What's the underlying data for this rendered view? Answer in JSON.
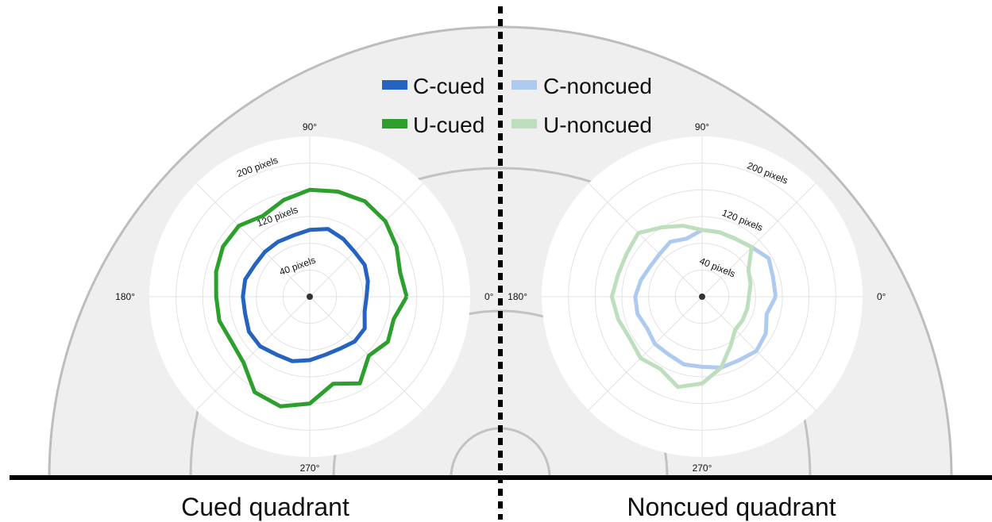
{
  "chart_data": {
    "type": "polar-line",
    "captions": {
      "left": "Cued quadrant",
      "right": "Noncued quadrant"
    },
    "legend": [
      {
        "name": "C-cued",
        "color": "#2563c0"
      },
      {
        "name": "U-cued",
        "color": "#2ca02c"
      },
      {
        "name": "C-noncued",
        "color": "#aecbef"
      },
      {
        "name": "U-noncued",
        "color": "#bedfbe"
      }
    ],
    "angle_ticks": [
      "0°",
      "90°",
      "180°",
      "270°"
    ],
    "radial_ticks": [
      {
        "value": 40,
        "label": "40 pixels"
      },
      {
        "value": 120,
        "label": "120 pixels"
      },
      {
        "value": 200,
        "label": "200 pixels"
      }
    ],
    "rmax": 240,
    "panels": [
      {
        "name": "Cued quadrant",
        "series": [
          {
            "name": "U-cued",
            "color": "#2ca02c",
            "angles_deg": [
              0,
              15,
              30,
              45,
              60,
              75,
              90,
              105,
              120,
              135,
              150,
              165,
              180,
              195,
              210,
              225,
              240,
              255,
              270,
              285,
              300,
              315,
              330,
              345
            ],
            "r_pixels": [
              145,
              140,
              150,
              160,
              165,
              163,
              160,
              150,
              140,
              150,
              150,
              145,
              140,
              140,
              135,
              140,
              165,
              170,
              160,
              135,
              150,
              125,
              135,
              130
            ]
          },
          {
            "name": "C-cued",
            "color": "#2563c0",
            "angles_deg": [
              0,
              15,
              30,
              45,
              60,
              75,
              90,
              105,
              120,
              135,
              150,
              165,
              180,
              195,
              210,
              225,
              240,
              255,
              270,
              285,
              300,
              315,
              330,
              345
            ],
            "r_pixels": [
              85,
              90,
              95,
              95,
              100,
              105,
              100,
              95,
              95,
              95,
              95,
              100,
              100,
              100,
              105,
              105,
              100,
              100,
              95,
              90,
              90,
              95,
              95,
              85
            ]
          }
        ]
      },
      {
        "name": "Noncued quadrant",
        "series": [
          {
            "name": "C-noncued",
            "color": "#aecbef",
            "angles_deg": [
              0,
              15,
              30,
              45,
              60,
              75,
              90,
              105,
              120,
              135,
              150,
              165,
              180,
              195,
              210,
              225,
              240,
              255,
              270,
              285,
              300,
              315,
              330,
              345
            ],
            "r_pixels": [
              110,
              110,
              115,
              105,
              100,
              100,
              100,
              90,
              95,
              90,
              90,
              95,
              100,
              100,
              95,
              100,
              100,
              105,
              105,
              110,
              110,
              115,
              110,
              100
            ]
          },
          {
            "name": "U-noncued",
            "color": "#bedfbe",
            "angles_deg": [
              0,
              15,
              30,
              45,
              60,
              75,
              90,
              105,
              120,
              135,
              150,
              165,
              180,
              195,
              210,
              225,
              240,
              255,
              270,
              285,
              300,
              315,
              330,
              345
            ],
            "r_pixels": [
              70,
              75,
              80,
              105,
              100,
              100,
              100,
              110,
              120,
              135,
              130,
              130,
              135,
              130,
              125,
              130,
              125,
              140,
              130,
              110,
              85,
              70,
              70,
              70
            ]
          }
        ]
      }
    ]
  }
}
